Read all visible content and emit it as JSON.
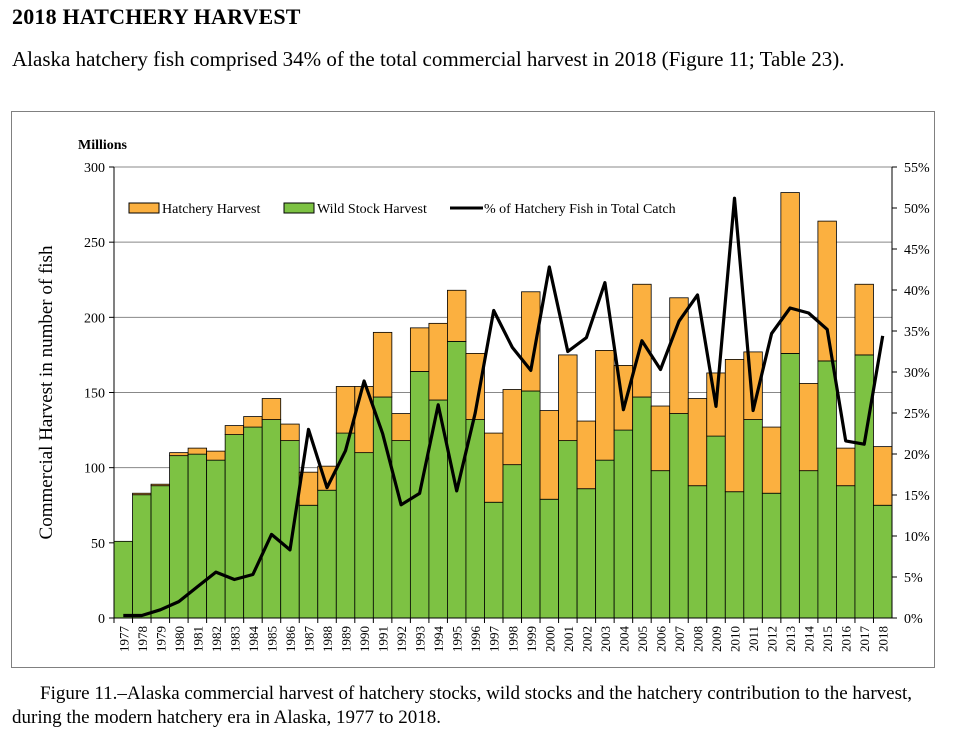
{
  "section": {
    "heading": "2018 HATCHERY HARVEST",
    "intro": "Alaska hatchery fish comprised 34% of the total commercial harvest in 2018 (Figure 11; Table 23)."
  },
  "caption": "Figure 11.–Alaska commercial harvest of hatchery stocks, wild stocks and the hatchery contribution to the harvest, during the modern hatchery era in Alaska, 1977 to 2018.",
  "colors": {
    "hatchery": "#FBB040",
    "wild": "#7DC243",
    "line": "#000000"
  },
  "chart_data": {
    "type": "bar",
    "stacked": true,
    "title": "",
    "units_label": "Millions",
    "ylabel": "Commercial Harvest in number of fish",
    "xlabel": "",
    "ylim": [
      0,
      300
    ],
    "y_ticks": [
      0,
      50,
      100,
      150,
      200,
      250,
      300
    ],
    "y2lim": [
      0,
      55
    ],
    "y2_ticks": [
      "0%",
      "5%",
      "10%",
      "15%",
      "20%",
      "25%",
      "30%",
      "35%",
      "40%",
      "45%",
      "50%",
      "55%"
    ],
    "legend_position": "top-left",
    "categories": [
      "1977",
      "1978",
      "1979",
      "1980",
      "1981",
      "1982",
      "1983",
      "1984",
      "1985",
      "1986",
      "1987",
      "1988",
      "1989",
      "1990",
      "1991",
      "1992",
      "1993",
      "1994",
      "1995",
      "1996",
      "1997",
      "1998",
      "1999",
      "2000",
      "2001",
      "2002",
      "2003",
      "2004",
      "2005",
      "2006",
      "2007",
      "2008",
      "2009",
      "2010",
      "2011",
      "2012",
      "2013",
      "2014",
      "2015",
      "2016",
      "2017",
      "2018"
    ],
    "series": [
      {
        "name": "Wild Stock Harvest",
        "kind": "bar",
        "values": [
          51,
          82,
          88,
          108,
          109,
          105,
          122,
          127,
          132,
          118,
          75,
          85,
          123,
          110,
          147,
          118,
          164,
          145,
          184,
          132,
          77,
          102,
          151,
          79,
          118,
          86,
          105,
          125,
          147,
          98,
          136,
          88,
          121,
          84,
          132,
          83,
          176,
          98,
          171,
          88,
          175,
          75
        ]
      },
      {
        "name": "Hatchery Harvest",
        "kind": "bar",
        "values": [
          0,
          1,
          1,
          2,
          4,
          6,
          6,
          7,
          14,
          11,
          22,
          16,
          31,
          44,
          43,
          18,
          29,
          51,
          34,
          44,
          46,
          50,
          66,
          59,
          57,
          45,
          73,
          43,
          75,
          43,
          77,
          58,
          42,
          88,
          45,
          44,
          107,
          58,
          93,
          25,
          47,
          39
        ]
      },
      {
        "name": "% of Hatchery Fish in Total Catch",
        "kind": "line",
        "axis": "right",
        "values": [
          0.3,
          0.3,
          1.0,
          2.0,
          3.8,
          5.6,
          4.7,
          5.3,
          10.2,
          8.3,
          23.0,
          15.9,
          20.4,
          28.9,
          22.5,
          13.8,
          15.2,
          26.0,
          15.5,
          25.0,
          37.5,
          33.0,
          30.2,
          42.8,
          32.5,
          34.2,
          40.9,
          25.4,
          33.8,
          30.3,
          36.2,
          39.4,
          25.8,
          51.2,
          25.3,
          34.7,
          37.8,
          37.2,
          35.2,
          21.6,
          21.2,
          34.4
        ]
      }
    ]
  }
}
